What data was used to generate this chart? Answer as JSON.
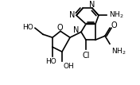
{
  "bg_color": "#ffffff",
  "line_color": "#000000",
  "lw": 1.2,
  "figsize": [
    1.76,
    1.07
  ],
  "dpi": 100,
  "xlim": [
    0,
    176
  ],
  "ylim": [
    0,
    107
  ]
}
